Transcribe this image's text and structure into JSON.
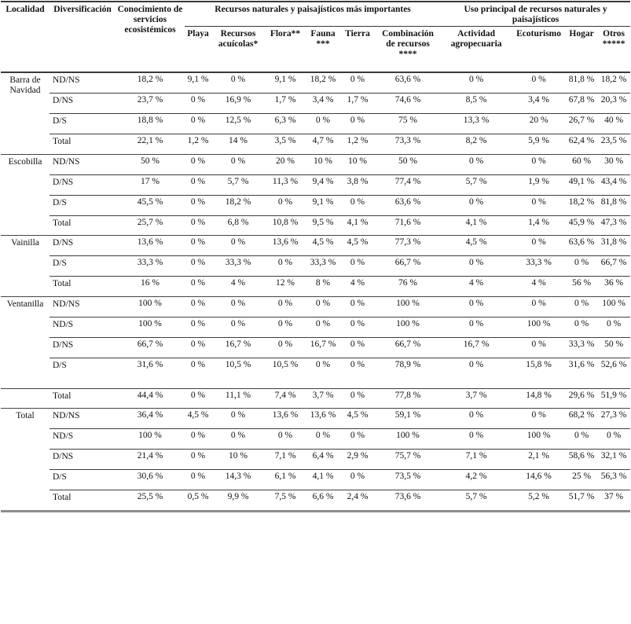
{
  "table": {
    "columns": {
      "localidad": "Localidad",
      "diversificacion": "Diversificación",
      "conocimiento": "Conocimiento de servicios ecosistémicos",
      "group_recursos": "Recursos naturales y paisajísticos más importantes",
      "group_uso": "Uso principal de recursos naturales y paisajísticos",
      "sub_recursos": [
        "Playa",
        "Recursos acuícolas*",
        "Flora**",
        "Fauna ***",
        "Tierra",
        "Combinación de recursos ****"
      ],
      "sub_uso": [
        "Actividad agropecuaria",
        "Ecoturismo",
        "Hogar",
        "Otros *****"
      ]
    },
    "groups": [
      {
        "locality": "Barra de Navidad",
        "rows": [
          {
            "label": "ND/NS",
            "values": [
              "18,2 %",
              "9,1 %",
              "0 %",
              "9,1 %",
              "18,2 %",
              "0 %",
              "63,6 %",
              "0 %",
              "0 %",
              "81,8 %",
              "18,2 %"
            ]
          },
          {
            "label": "D/NS",
            "values": [
              "23,7 %",
              "0 %",
              "16,9 %",
              "1,7 %",
              "3,4 %",
              "1,7 %",
              "74,6 %",
              "8,5 %",
              "3,4 %",
              "67,8 %",
              "20,3 %"
            ]
          },
          {
            "label": "D/S",
            "values": [
              "18,8 %",
              "0 %",
              "12,5 %",
              "6,3 %",
              "0 %",
              "0 %",
              "75 %",
              "13,3 %",
              "20 %",
              "26,7 %",
              "40 %"
            ]
          },
          {
            "label": "Total",
            "values": [
              "22,1 %",
              "1,2 %",
              "14 %",
              "3,5 %",
              "4,7 %",
              "1,2 %",
              "73,3 %",
              "8,2 %",
              "5,9 %",
              "62,4 %",
              "23,5 %"
            ]
          }
        ]
      },
      {
        "locality": "Escobilla",
        "rows": [
          {
            "label": "ND/NS",
            "values": [
              "50 %",
              "0 %",
              "0 %",
              "20 %",
              "10 %",
              "10 %",
              "50 %",
              "0 %",
              "0 %",
              "60 %",
              "30 %"
            ]
          },
          {
            "label": "D/NS",
            "values": [
              "17 %",
              "0 %",
              "5,7 %",
              "11,3 %",
              "9,4 %",
              "3,8 %",
              "77,4 %",
              "5,7 %",
              "1,9 %",
              "49,1 %",
              "43,4 %"
            ]
          },
          {
            "label": "D/S",
            "values": [
              "45,5 %",
              "0 %",
              "18,2 %",
              "0 %",
              "9,1 %",
              "0 %",
              "63,6 %",
              "0 %",
              "0 %",
              "18,2 %",
              "81,8 %"
            ]
          },
          {
            "label": "Total",
            "values": [
              "25,7 %",
              "0 %",
              "6,8 %",
              "10,8 %",
              "9,5 %",
              "4,1 %",
              "71,6 %",
              "4,1 %",
              "1,4 %",
              "45,9 %",
              "47,3 %"
            ]
          }
        ]
      },
      {
        "locality": "Vainilla",
        "rows": [
          {
            "label": "D/NS",
            "values": [
              "13,6 %",
              "0 %",
              "0 %",
              "13,6 %",
              "4,5 %",
              "4,5 %",
              "77,3 %",
              "4,5 %",
              "0 %",
              "63,6 %",
              "31,8 %"
            ]
          },
          {
            "label": "D/S",
            "values": [
              "33,3 %",
              "0 %",
              "33,3 %",
              "0 %",
              "33,3 %",
              "0 %",
              "66,7 %",
              "0 %",
              "33,3 %",
              "0 %",
              "66,7 %"
            ]
          },
          {
            "label": "Total",
            "values": [
              "16 %",
              "0 %",
              "4 %",
              "12 %",
              "8 %",
              "4 %",
              "76 %",
              "4 %",
              "4 %",
              "56 %",
              "36 %"
            ]
          }
        ]
      },
      {
        "locality": "Ventanilla",
        "total_separate_line": true,
        "rows": [
          {
            "label": "ND/NS",
            "values": [
              "100 %",
              "0 %",
              "0 %",
              "0 %",
              "0 %",
              "0 %",
              "100 %",
              "0 %",
              "0 %",
              "0 %",
              "100 %"
            ]
          },
          {
            "label": "ND/S",
            "values": [
              "100 %",
              "0 %",
              "0 %",
              "0 %",
              "0 %",
              "0 %",
              "100 %",
              "0 %",
              "100 %",
              "0 %",
              "0 %"
            ]
          },
          {
            "label": "D/NS",
            "values": [
              "66,7 %",
              "0 %",
              "16,7 %",
              "0 %",
              "16,7 %",
              "0 %",
              "66,7 %",
              "16,7 %",
              "0 %",
              "33,3 %",
              "50 %"
            ]
          },
          {
            "label": "D/S",
            "values": [
              "31,6 %",
              "0 %",
              "10,5 %",
              "10,5 %",
              "0 %",
              "0 %",
              "78,9 %",
              "0 %",
              "15,8 %",
              "31,6 %",
              "52,6 %"
            ],
            "gap_after": true
          },
          {
            "label": "Total",
            "values": [
              "44,4 %",
              "0 %",
              "11,1 %",
              "7,4 %",
              "3,7 %",
              "0 %",
              "77,8 %",
              "3,7 %",
              "14,8 %",
              "29,6 %",
              "51,9 %"
            ]
          }
        ]
      },
      {
        "locality": "Total",
        "rows": [
          {
            "label": "ND/NS",
            "values": [
              "36,4 %",
              "4,5 %",
              "0 %",
              "13,6 %",
              "13,6 %",
              "4,5 %",
              "59,1 %",
              "0 %",
              "0 %",
              "68,2 %",
              "27,3 %"
            ]
          },
          {
            "label": "ND/S",
            "values": [
              "100 %",
              "0 %",
              "0 %",
              "0 %",
              "0 %",
              "0 %",
              "100 %",
              "0 %",
              "100 %",
              "0 %",
              "0 %"
            ]
          },
          {
            "label": "D/NS",
            "values": [
              "21,4 %",
              "0 %",
              "10 %",
              "7,1 %",
              "6,4 %",
              "2,9 %",
              "75,7 %",
              "7,1 %",
              "2,1 %",
              "58,6 %",
              "32,1 %"
            ]
          },
          {
            "label": "D/S",
            "values": [
              "30,6 %",
              "0 %",
              "14,3 %",
              "6,1 %",
              "4,1 %",
              "0 %",
              "73,5 %",
              "4,2 %",
              "14,6 %",
              "25 %",
              "56,3 %"
            ]
          },
          {
            "label": "Total",
            "values": [
              "25,5 %",
              "0,5 %",
              "9,9 %",
              "7,5 %",
              "6,6 %",
              "2,4 %",
              "73,6 %",
              "5,7 %",
              "5,2 %",
              "51,7 %",
              "37 %"
            ]
          }
        ]
      }
    ]
  }
}
